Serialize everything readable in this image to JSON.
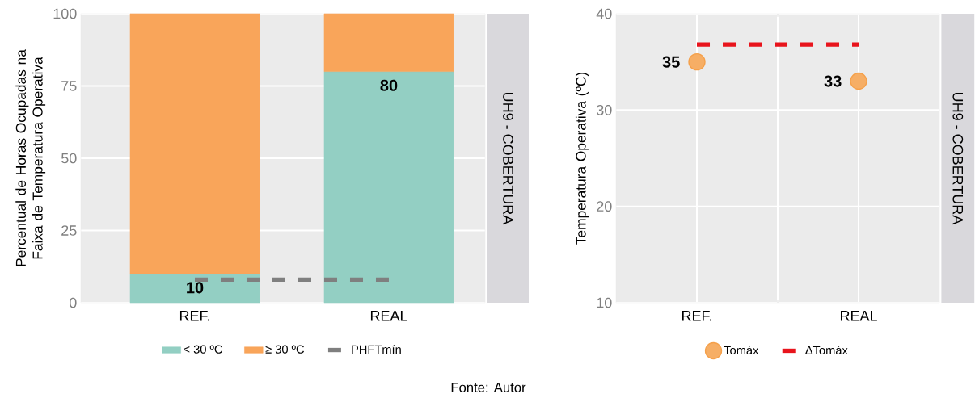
{
  "chart_data": [
    {
      "type": "bar",
      "stacked": true,
      "categories": [
        "REF.",
        "REAL"
      ],
      "ylabel": "Percentual de Horas Ocupadas na Faixa de Temperatura Operativa",
      "ylim": [
        0,
        100
      ],
      "yticks": [
        0,
        25,
        50,
        75,
        100
      ],
      "grid": "y",
      "legend": "bottom",
      "annotations": [
        "UH9 - COBERTURA",
        "Fonte: Autor"
      ],
      "series": [
        {
          "name": "< 30 ºC",
          "color": "#93cfc3",
          "values": [
            10,
            80
          ],
          "value_labels": [
            "10",
            "80"
          ]
        },
        {
          "name": "≥ 30 ºC",
          "color": "#f9a55a",
          "values": [
            90,
            20
          ]
        },
        {
          "type": "line",
          "name": "PHFTmín",
          "color": "#7f7f7f",
          "values": [
            8,
            8
          ],
          "line_style": "dashed"
        }
      ]
    },
    {
      "type": "scatter",
      "categories": [
        "REF.",
        "REAL"
      ],
      "ylabel": "Temperatura Operativa (ºC)",
      "ylim": [
        10,
        40
      ],
      "yticks": [
        10,
        20,
        30,
        40
      ],
      "grid": true,
      "legend": "bottom",
      "marker": "circle",
      "annotations": [
        "UH9 - COBERTURA"
      ],
      "series": [
        {
          "name": "Tomáx",
          "color": "#f5a04a",
          "values": [
            35,
            33
          ],
          "value_labels": [
            "35",
            "33"
          ]
        },
        {
          "type": "line",
          "name": "ΔTomáx",
          "color": "#e8141c",
          "values": [
            36.8,
            36.8
          ],
          "line_style": "dashed",
          "marker": "none"
        }
      ]
    }
  ]
}
